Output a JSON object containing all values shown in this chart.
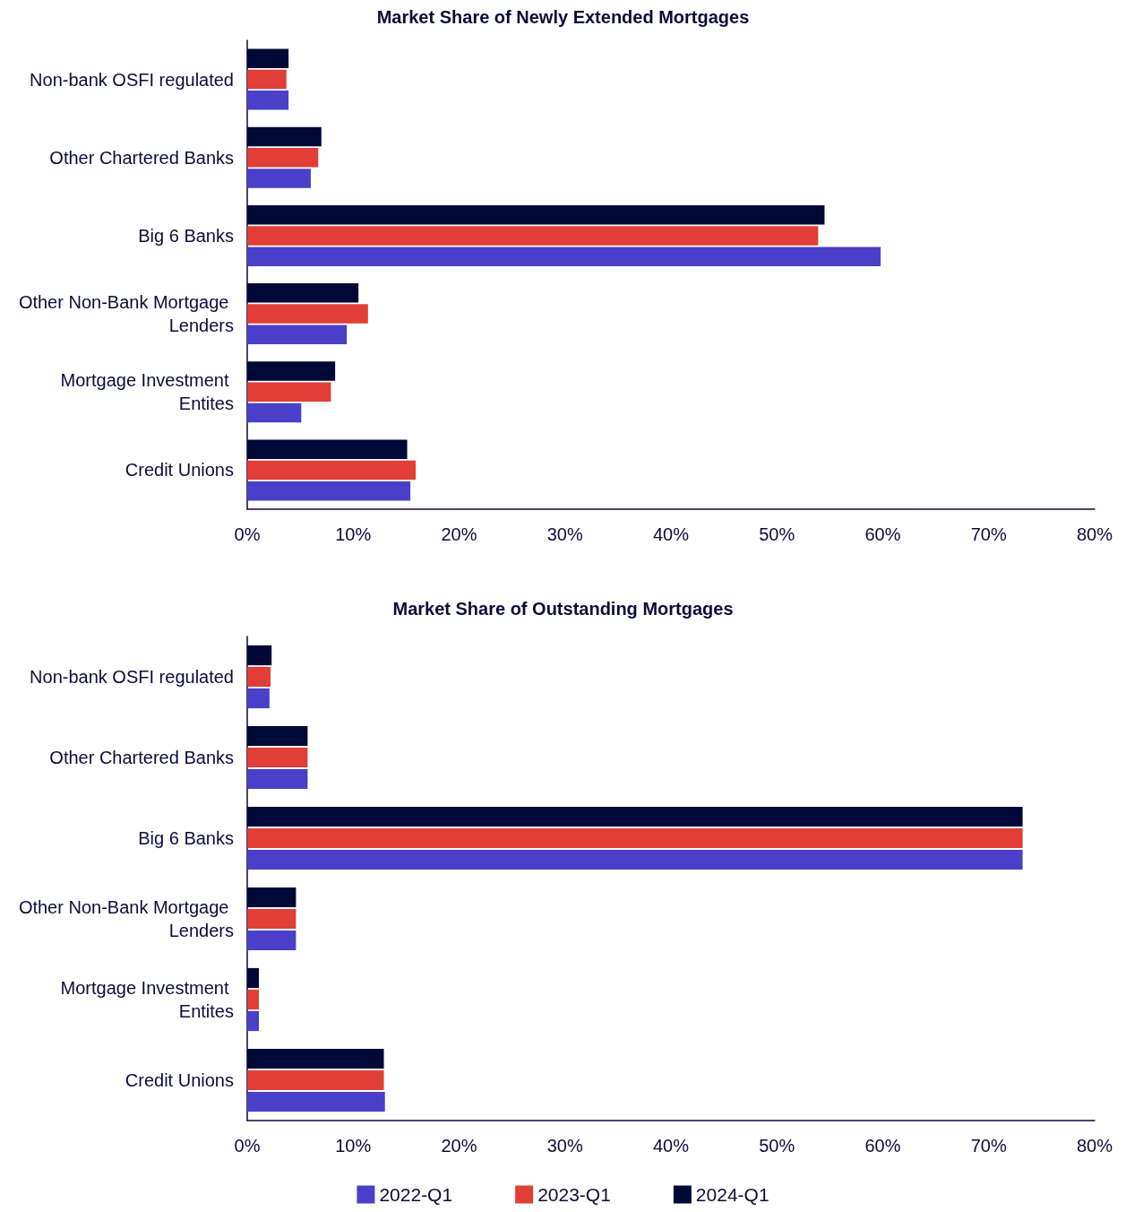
{
  "chart_data": [
    {
      "type": "bar",
      "orientation": "horizontal",
      "title": "Market Share of Newly Extended Mortgages",
      "categories": [
        "Non-bank OSFI regulated",
        "Other Chartered Banks",
        "Big 6 Banks",
        "Other Non-Bank Mortgage Lenders",
        "Mortgage Investment Entites",
        "Credit Unions"
      ],
      "series": [
        {
          "color": "#4a3fc9",
          "values": [
            3.9,
            6.0,
            59.8,
            9.4,
            5.1,
            15.4
          ]
        },
        {
          "color": "#e03e36",
          "values": [
            3.7,
            6.7,
            53.9,
            11.4,
            7.9,
            15.9
          ]
        },
        {
          "color": "#000836",
          "values": [
            3.9,
            7.0,
            54.5,
            10.5,
            8.3,
            15.1
          ]
        }
      ],
      "xlim": [
        0,
        80
      ],
      "xticks": [
        {
          "value": 0,
          "label": "0%"
        },
        {
          "value": 10,
          "label": "10%"
        },
        {
          "value": 20,
          "label": "20%"
        },
        {
          "value": 30,
          "label": "30%"
        },
        {
          "value": 40,
          "label": "40%"
        },
        {
          "value": 50,
          "label": "50%"
        },
        {
          "value": 60,
          "label": "60%"
        },
        {
          "value": 70,
          "label": "70%"
        },
        {
          "value": 80,
          "label": "80%"
        }
      ],
      "grid": false
    },
    {
      "type": "bar",
      "orientation": "horizontal",
      "title": "Market Share of Outstanding Mortgages",
      "categories": [
        "Non-bank OSFI regulated",
        "Other Chartered Banks",
        "Big 6 Banks",
        "Other Non-Bank Mortgage Lenders",
        "Mortgage Investment Entites",
        "Credit Unions"
      ],
      "series": [
        {
          "name": "2022-Q1",
          "color": "#4a3fc9",
          "values": [
            2.1,
            5.7,
            73.2,
            4.6,
            1.1,
            13.0
          ]
        },
        {
          "name": "2023-Q1",
          "color": "#e03e36",
          "values": [
            2.2,
            5.7,
            73.2,
            4.6,
            1.1,
            12.9
          ]
        },
        {
          "name": "2024-Q1",
          "color": "#000836",
          "values": [
            2.3,
            5.7,
            73.2,
            4.6,
            1.1,
            12.9
          ]
        }
      ],
      "xlim": [
        0,
        80
      ],
      "xticks": [
        {
          "value": 0,
          "label": "0%"
        },
        {
          "value": 10,
          "label": "10%"
        },
        {
          "value": 20,
          "label": "20%"
        },
        {
          "value": 30,
          "label": "30%"
        },
        {
          "value": 40,
          "label": "40%"
        },
        {
          "value": 50,
          "label": "50%"
        },
        {
          "value": 60,
          "label": "60%"
        },
        {
          "value": 70,
          "label": "70%"
        },
        {
          "value": 80,
          "label": "80%"
        }
      ],
      "grid": false,
      "legend": "bottom"
    }
  ]
}
